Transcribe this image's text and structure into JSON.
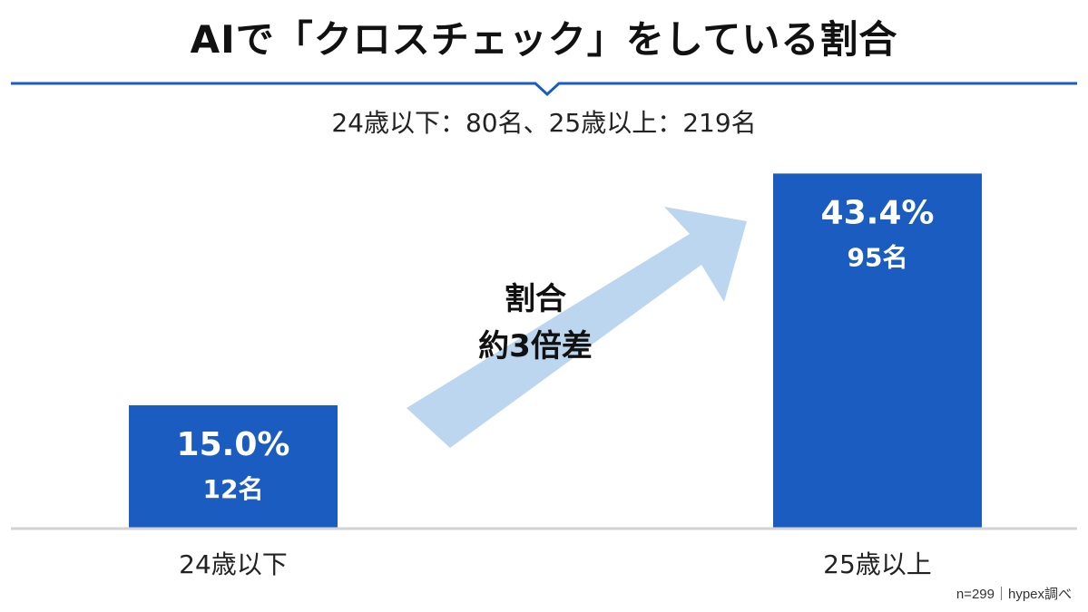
{
  "header": {
    "title": "AIで「クロスチェック」をしている割合",
    "subtitle": "24歳以下：80名、25歳以上：219名"
  },
  "chart_data": {
    "type": "bar",
    "categories": [
      "24歳以下",
      "25歳以上"
    ],
    "series": [
      {
        "values": [
          15.0,
          43.4
        ],
        "value_labels": [
          "15.0%",
          "43.4%"
        ],
        "counts": [
          "12名",
          "95名"
        ]
      }
    ],
    "ylim": [
      0,
      50
    ],
    "grid": false,
    "annotation": {
      "lines": [
        "割合",
        "約3倍差"
      ]
    }
  },
  "colors": {
    "bar": "#1a5cc0",
    "arrow": "#bcd6f0",
    "accent_line": "#1a5cc0",
    "baseline": "#d3d3d3"
  },
  "footnote": "n=299｜hypex調べ"
}
